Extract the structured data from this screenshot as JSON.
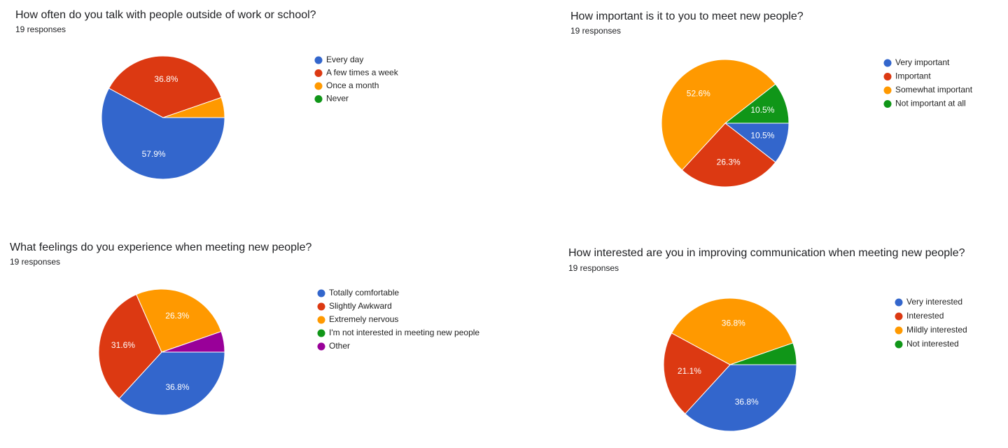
{
  "chart_data": [
    {
      "type": "pie",
      "title": "How often do you talk with people outside of work or school?",
      "subtitle": "19 responses",
      "categories": [
        "Every day",
        "A few times a week",
        "Once a month",
        "Never"
      ],
      "values": [
        57.9,
        36.8,
        5.3,
        0
      ],
      "value_labels": [
        "57.9%",
        "36.8%",
        null,
        null
      ],
      "colors": [
        "#3366cc",
        "#dc3912",
        "#ff9900",
        "#109618"
      ]
    },
    {
      "type": "pie",
      "title": "How important is it to you to meet new people?",
      "subtitle": "19 responses",
      "categories": [
        "Very important",
        "Important",
        "Somewhat important",
        "Not important at all"
      ],
      "values": [
        10.5,
        26.3,
        52.6,
        10.5
      ],
      "value_labels": [
        "10.5%",
        "26.3%",
        "52.6%",
        "10.5%"
      ],
      "colors": [
        "#3366cc",
        "#dc3912",
        "#ff9900",
        "#109618"
      ]
    },
    {
      "type": "pie",
      "title": "What feelings do you experience when meeting new people?",
      "subtitle": "19 responses",
      "categories": [
        "Totally comfortable",
        "Slightly Awkward",
        "Extremely nervous",
        "I'm not interested in meeting new people",
        "Other"
      ],
      "values": [
        36.8,
        31.6,
        26.3,
        0,
        5.3
      ],
      "value_labels": [
        "36.8%",
        "31.6%",
        "26.3%",
        null,
        null
      ],
      "colors": [
        "#3366cc",
        "#dc3912",
        "#ff9900",
        "#109618",
        "#990099"
      ]
    },
    {
      "type": "pie",
      "title": "How interested are you in improving communication when meeting new people?",
      "subtitle": "19 responses",
      "categories": [
        "Very interested",
        "Interested",
        "Mildly interested",
        "Not interested"
      ],
      "values": [
        36.8,
        21.1,
        36.8,
        5.3
      ],
      "value_labels": [
        "36.8%",
        "21.1%",
        "36.8%",
        null
      ],
      "colors": [
        "#3366cc",
        "#dc3912",
        "#ff9900",
        "#109618"
      ]
    }
  ]
}
